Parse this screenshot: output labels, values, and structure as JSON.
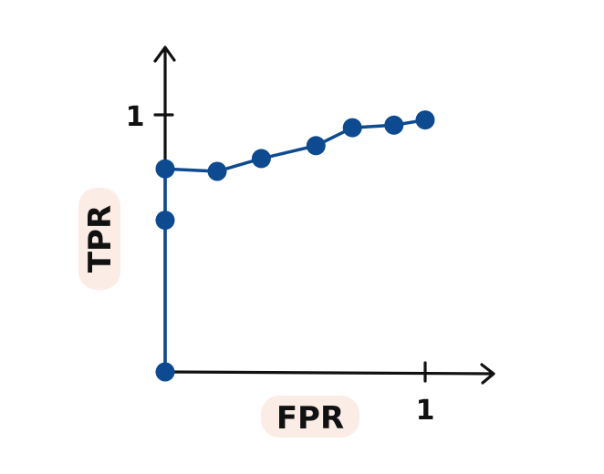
{
  "chart_data": {
    "type": "line",
    "title": "",
    "xlabel": "FPR",
    "ylabel": "TPR",
    "xlim": [
      0,
      1
    ],
    "ylim": [
      0,
      1
    ],
    "x_ticks": [
      "1"
    ],
    "y_ticks": [
      "1"
    ],
    "grid": false,
    "legend": "none",
    "series": [
      {
        "x": [
          0,
          0,
          0,
          0.2,
          0.37,
          0.58,
          0.72,
          0.88,
          1.0
        ],
        "y": [
          0,
          0.59,
          0.79,
          0.78,
          0.83,
          0.88,
          0.95,
          0.96,
          0.98
        ]
      }
    ]
  },
  "colors": {
    "series": "#0d4a8f",
    "axis": "#111111",
    "label_bg": "#fbece6"
  }
}
